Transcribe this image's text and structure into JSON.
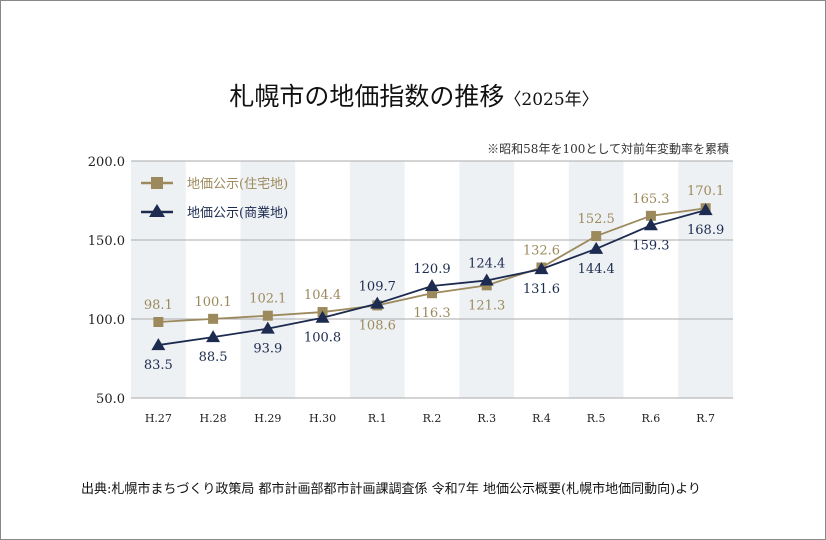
{
  "title": "札幌市の地価指数の推移",
  "title_year": "〈2025年〉",
  "note": "※昭和58年を100として対前年変動率を累積",
  "source": "出典:札幌市まちづくり政策局 都市計画部都市計画課調査係 令和7年 地価公示概要(札幌市地価同動向)より",
  "chart_data": {
    "type": "line",
    "categories": [
      "H.27",
      "H.28",
      "H.29",
      "H.30",
      "R.1",
      "R.2",
      "R.3",
      "R.4",
      "R.5",
      "R.6",
      "R.7"
    ],
    "ylim": [
      50,
      200
    ],
    "yticks": [
      "50.0",
      "100.0",
      "150.0",
      "200.0"
    ],
    "grid": true,
    "legend": "top-left",
    "series": [
      {
        "name": "地価公示(住宅地)",
        "color": "#9c8a5c",
        "marker": "square",
        "values": [
          98.1,
          100.1,
          102.1,
          104.4,
          108.6,
          116.3,
          121.3,
          132.6,
          152.5,
          165.3,
          170.1
        ]
      },
      {
        "name": "地価公示(商業地)",
        "color": "#1c2b4f",
        "marker": "triangle",
        "values": [
          83.5,
          88.5,
          93.9,
          100.8,
          109.7,
          120.9,
          124.4,
          131.6,
          144.4,
          159.3,
          168.9
        ]
      }
    ]
  }
}
